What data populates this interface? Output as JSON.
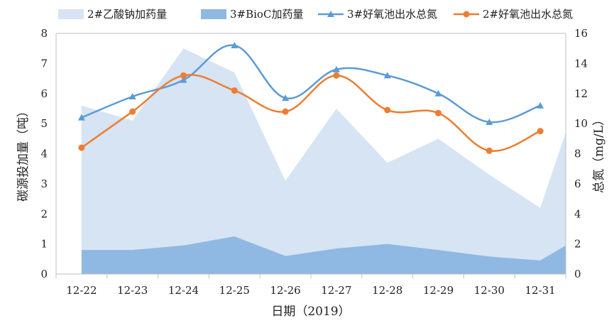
{
  "chart_data": {
    "type": "area+line",
    "categories": [
      "12-22",
      "12-23",
      "12-24",
      "12-25",
      "12-26",
      "12-27",
      "12-28",
      "12-29",
      "12-30",
      "12-31"
    ],
    "x_extra_edge_value_label": "right edge continuation",
    "xlabel": "日期（2019）",
    "ylabel_left": "碳源投加量（吨）",
    "ylabel_right": "总氮（mg/L）",
    "ylim_left": [
      0,
      8
    ],
    "ylim_right": [
      0,
      16
    ],
    "yticks_left": [
      "0",
      "1",
      "2",
      "3",
      "4",
      "5",
      "6",
      "7",
      "8"
    ],
    "yticks_right": [
      "0",
      "2",
      "4",
      "6",
      "8",
      "10",
      "12",
      "14",
      "16"
    ],
    "grid": false,
    "legend_position": "top",
    "series": [
      {
        "name": "2#乙酸钠加药量",
        "kind": "area",
        "axis": "left",
        "color": "#d6e4f4",
        "values": [
          5.6,
          5.1,
          7.5,
          6.7,
          3.1,
          5.5,
          3.7,
          4.5,
          3.3,
          2.2
        ],
        "edge_value": 4.7
      },
      {
        "name": "3#BioC加药量",
        "kind": "area",
        "axis": "left",
        "color": "#8fb8e2",
        "values": [
          0.8,
          0.8,
          0.95,
          1.25,
          0.6,
          0.85,
          1.0,
          0.8,
          0.58,
          0.45
        ],
        "edge_value": 0.95
      },
      {
        "name": "3#好氧池出水总氮",
        "kind": "line",
        "marker": "triangle",
        "axis": "right",
        "color": "#5b9bd5",
        "values": [
          10.4,
          11.8,
          12.9,
          15.2,
          11.7,
          13.6,
          13.2,
          12.0,
          10.1,
          11.2
        ]
      },
      {
        "name": "2#好氧池出水总氮",
        "kind": "line",
        "marker": "circle",
        "axis": "right",
        "color": "#ed7d31",
        "values": [
          8.4,
          10.8,
          13.2,
          12.2,
          10.8,
          13.2,
          10.9,
          10.7,
          8.2,
          9.5
        ]
      }
    ]
  }
}
